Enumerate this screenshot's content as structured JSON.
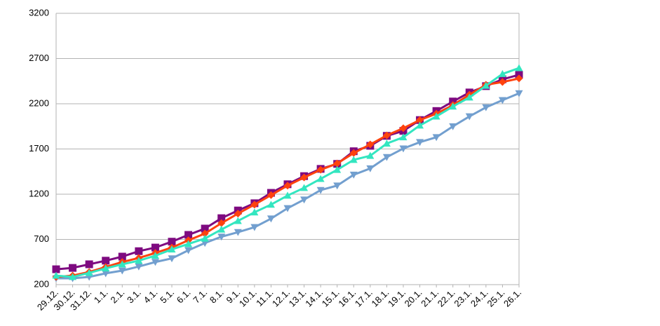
{
  "chart_data": {
    "type": "line",
    "categories": [
      "29.12.",
      "30.12.",
      "31.12.",
      "1.1.",
      "2.1.",
      "3.1.",
      "4.1.",
      "5.1.",
      "6.1.",
      "7.1.",
      "8.1.",
      "9.1.",
      "10.1.",
      "11.1.",
      "12.1.",
      "13.1.",
      "14.1.",
      "15.1.",
      "16.1.",
      "17.1.",
      "18.1.",
      "19.1.",
      "20.1.",
      "21.1.",
      "22.1.",
      "23.1.",
      "24.1.",
      "25.1.",
      "26.1."
    ],
    "series": [
      {
        "color": "#729fcf",
        "marker": "triangle-down",
        "values": [
          270,
          270,
          285,
          325,
          355,
          400,
          450,
          490,
          580,
          660,
          730,
          780,
          835,
          930,
          1045,
          1140,
          1245,
          1295,
          1415,
          1485,
          1610,
          1705,
          1775,
          1830,
          1950,
          2060,
          2160,
          2240,
          2315
        ]
      },
      {
        "color": "#7e0a80",
        "marker": "square",
        "values": [
          370,
          385,
          425,
          465,
          510,
          570,
          610,
          675,
          750,
          820,
          935,
          1020,
          1100,
          1215,
          1310,
          1400,
          1480,
          1535,
          1675,
          1735,
          1845,
          1900,
          2020,
          2120,
          2225,
          2325,
          2395,
          2470,
          2520
        ]
      },
      {
        "color": "#ff420e",
        "marker": "diamond",
        "values": [
          285,
          300,
          340,
          395,
          450,
          495,
          550,
          610,
          690,
          765,
          880,
          985,
          1085,
          1190,
          1295,
          1385,
          1470,
          1540,
          1655,
          1750,
          1850,
          1930,
          2020,
          2090,
          2185,
          2300,
          2410,
          2440,
          2480
        ]
      },
      {
        "color": "#33e6c0",
        "marker": "triangle-up",
        "values": [
          300,
          285,
          330,
          380,
          425,
          465,
          520,
          590,
          650,
          710,
          810,
          905,
          1000,
          1085,
          1185,
          1270,
          1370,
          1470,
          1580,
          1625,
          1760,
          1830,
          1960,
          2060,
          2170,
          2270,
          2400,
          2530,
          2595
        ]
      }
    ],
    "ylim": [
      200,
      3200
    ],
    "yticks": [
      200,
      700,
      1200,
      1700,
      2200,
      2700,
      3200
    ],
    "grid": true
  }
}
